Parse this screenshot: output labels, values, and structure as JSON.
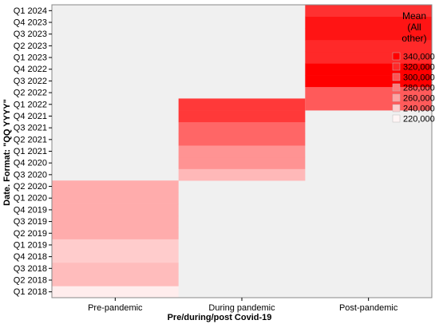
{
  "chart_data": {
    "type": "heatmap",
    "xlabel": "Pre/during/post Covid-19",
    "ylabel": "Date. Format: \"QQ YYYY\"",
    "x_categories": [
      "Pre-pandemic",
      "During pandemic",
      "Post-pandemic"
    ],
    "y_categories": [
      "Q1 2018",
      "Q2 2018",
      "Q3 2018",
      "Q4 2018",
      "Q1 2019",
      "Q2 2019",
      "Q3 2019",
      "Q4 2019",
      "Q1 2020",
      "Q2 2020",
      "Q3 2020",
      "Q4 2020",
      "Q1 2021",
      "Q2 2021",
      "Q3 2021",
      "Q4 2021",
      "Q1 2022",
      "Q2 2022",
      "Q3 2022",
      "Q4 2022",
      "Q1 2023",
      "Q2 2023",
      "Q3 2023",
      "Q4 2023",
      "Q1 2024"
    ],
    "cells": [
      {
        "x": "Pre-pandemic",
        "y": "Q1 2018",
        "value": 224000
      },
      {
        "x": "Pre-pandemic",
        "y": "Q2 2018",
        "value": 248000
      },
      {
        "x": "Pre-pandemic",
        "y": "Q3 2018",
        "value": 248000
      },
      {
        "x": "Pre-pandemic",
        "y": "Q4 2018",
        "value": 240000
      },
      {
        "x": "Pre-pandemic",
        "y": "Q1 2019",
        "value": 240000
      },
      {
        "x": "Pre-pandemic",
        "y": "Q2 2019",
        "value": 256000
      },
      {
        "x": "Pre-pandemic",
        "y": "Q3 2019",
        "value": 256000
      },
      {
        "x": "Pre-pandemic",
        "y": "Q4 2019",
        "value": 256000
      },
      {
        "x": "Pre-pandemic",
        "y": "Q1 2020",
        "value": 256000
      },
      {
        "x": "Pre-pandemic",
        "y": "Q2 2020",
        "value": 256000
      },
      {
        "x": "During pandemic",
        "y": "Q3 2020",
        "value": 250000
      },
      {
        "x": "During pandemic",
        "y": "Q4 2020",
        "value": 268000
      },
      {
        "x": "During pandemic",
        "y": "Q1 2021",
        "value": 268000
      },
      {
        "x": "During pandemic",
        "y": "Q2 2021",
        "value": 290000
      },
      {
        "x": "During pandemic",
        "y": "Q3 2021",
        "value": 290000
      },
      {
        "x": "During pandemic",
        "y": "Q4 2021",
        "value": 312000
      },
      {
        "x": "During pandemic",
        "y": "Q1 2022",
        "value": 312000
      },
      {
        "x": "Post-pandemic",
        "y": "Q1 2022",
        "value": 296000
      },
      {
        "x": "Post-pandemic",
        "y": "Q2 2022",
        "value": 296000
      },
      {
        "x": "Post-pandemic",
        "y": "Q3 2022",
        "value": 340000
      },
      {
        "x": "Post-pandemic",
        "y": "Q4 2022",
        "value": 340000
      },
      {
        "x": "Post-pandemic",
        "y": "Q1 2023",
        "value": 320000
      },
      {
        "x": "Post-pandemic",
        "y": "Q2 2023",
        "value": 320000
      },
      {
        "x": "Post-pandemic",
        "y": "Q3 2023",
        "value": 330000
      },
      {
        "x": "Post-pandemic",
        "y": "Q4 2023",
        "value": 330000
      },
      {
        "x": "Post-pandemic",
        "y": "Q1 2024",
        "value": 316000
      }
    ],
    "empty_color": "#f0f0f0",
    "color_scale": {
      "min": 220000,
      "max": 340000,
      "low_color": "#fff5f5",
      "high_color": "#ff0000"
    },
    "legend": {
      "title_lines": [
        "Mean",
        "(All",
        "other)"
      ],
      "entries": [
        {
          "label": "340,000",
          "value": 340000
        },
        {
          "label": "320,000",
          "value": 320000
        },
        {
          "label": "300,000",
          "value": 300000
        },
        {
          "label": "280,000",
          "value": 280000
        },
        {
          "label": "260,000",
          "value": 260000
        },
        {
          "label": "240,000",
          "value": 240000
        },
        {
          "label": "220,000",
          "value": 220000
        }
      ],
      "placement": "right"
    }
  }
}
